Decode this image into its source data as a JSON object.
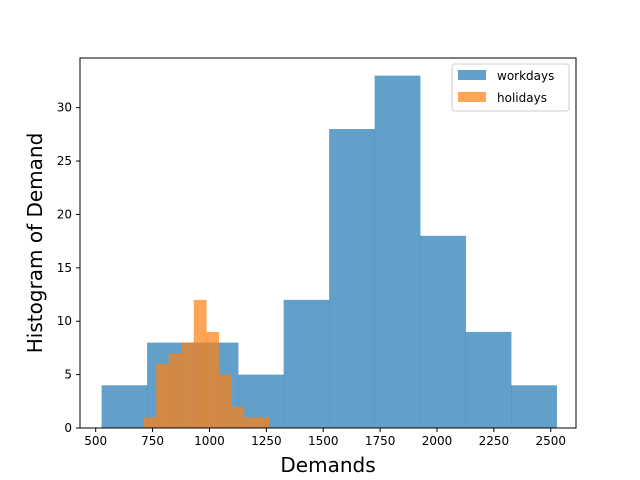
{
  "chart_data": {
    "type": "histogram",
    "xlabel": "Demands",
    "ylabel": "Histogram of Demand",
    "xlim": [
      431,
      2611
    ],
    "ylim": [
      0,
      34.65
    ],
    "xticks": [
      500,
      750,
      1000,
      1250,
      1500,
      1750,
      2000,
      2250,
      2500
    ],
    "yticks": [
      0,
      5,
      10,
      15,
      20,
      25,
      30
    ],
    "grid": false,
    "legend_position": "top-right",
    "series": [
      {
        "name": "workdays",
        "color": "#1f77b4",
        "opacity": 0.7,
        "bin_edges": [
          526,
          726,
          926,
          1126,
          1326,
          1526,
          1726,
          1926,
          2126,
          2326,
          2526
        ],
        "counts": [
          4,
          8,
          8,
          5,
          12,
          28,
          33,
          18,
          9,
          4
        ]
      },
      {
        "name": "holidays",
        "color": "#ff7f0e",
        "opacity": 0.7,
        "bin_edges": [
          711,
          766,
          821,
          876,
          931,
          986,
          1041,
          1096,
          1151,
          1206,
          1261
        ],
        "counts": [
          1,
          6,
          7,
          8,
          12,
          9,
          5,
          2,
          1,
          1
        ]
      }
    ]
  }
}
